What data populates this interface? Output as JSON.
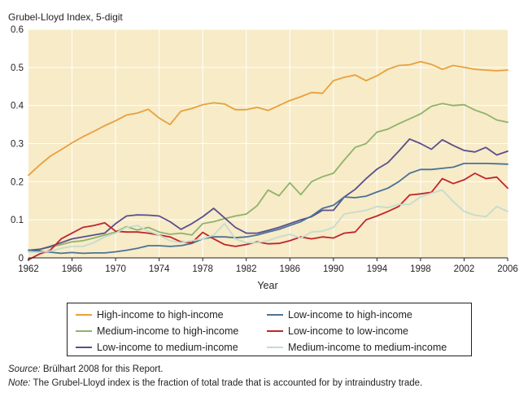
{
  "chart_data": {
    "type": "line",
    "title": "Grubel-Lloyd Index, 5-digit",
    "xlabel": "Year",
    "ylabel": "",
    "xlim": [
      1962,
      2006
    ],
    "ylim": [
      0,
      0.6
    ],
    "x_tick_labels": [
      "1962",
      "1966",
      "1970",
      "1974",
      "1978",
      "1982",
      "1986",
      "1990",
      "1994",
      "1998",
      "2002",
      "2006"
    ],
    "y_tick_labels": [
      "0",
      "0.1",
      "0.2",
      "0.3",
      "0.4",
      "0.5",
      "0.6"
    ],
    "grid": true,
    "legend_position": "bottom",
    "x": [
      1962,
      1963,
      1964,
      1965,
      1966,
      1967,
      1968,
      1969,
      1970,
      1971,
      1972,
      1973,
      1974,
      1975,
      1976,
      1977,
      1978,
      1979,
      1980,
      1981,
      1982,
      1983,
      1984,
      1985,
      1986,
      1987,
      1988,
      1989,
      1990,
      1991,
      1992,
      1993,
      1994,
      1995,
      1996,
      1997,
      1998,
      1999,
      2000,
      2001,
      2002,
      2003,
      2004,
      2005,
      2006
    ],
    "series": [
      {
        "name": "High-income to high-income",
        "color": "#e8a03c",
        "values": [
          0.217,
          0.243,
          0.267,
          0.284,
          0.302,
          0.318,
          0.332,
          0.347,
          0.36,
          0.375,
          0.38,
          0.39,
          0.367,
          0.35,
          0.385,
          0.392,
          0.402,
          0.407,
          0.404,
          0.389,
          0.389,
          0.395,
          0.387,
          0.4,
          0.413,
          0.423,
          0.434,
          0.432,
          0.465,
          0.474,
          0.48,
          0.465,
          0.478,
          0.495,
          0.505,
          0.507,
          0.515,
          0.508,
          0.495,
          0.505,
          0.5,
          0.495,
          0.493,
          0.491,
          0.493
        ]
      },
      {
        "name": "Medium-income to high-income",
        "color": "#8fb36a",
        "values": [
          0.02,
          0.023,
          0.028,
          0.035,
          0.042,
          0.045,
          0.052,
          0.06,
          0.068,
          0.082,
          0.073,
          0.08,
          0.068,
          0.062,
          0.065,
          0.06,
          0.09,
          0.095,
          0.103,
          0.11,
          0.115,
          0.137,
          0.178,
          0.163,
          0.197,
          0.166,
          0.2,
          0.213,
          0.222,
          0.257,
          0.29,
          0.3,
          0.33,
          0.338,
          0.352,
          0.365,
          0.378,
          0.398,
          0.405,
          0.4,
          0.402,
          0.388,
          0.378,
          0.362,
          0.356
        ]
      },
      {
        "name": "Low-income to medium-income",
        "color": "#5a4e8c",
        "values": [
          0.02,
          0.022,
          0.03,
          0.04,
          0.05,
          0.055,
          0.06,
          0.065,
          0.09,
          0.11,
          0.113,
          0.112,
          0.11,
          0.095,
          0.075,
          0.09,
          0.108,
          0.13,
          0.105,
          0.08,
          0.065,
          0.065,
          0.072,
          0.08,
          0.09,
          0.1,
          0.108,
          0.125,
          0.125,
          0.16,
          0.18,
          0.208,
          0.233,
          0.25,
          0.28,
          0.312,
          0.3,
          0.285,
          0.31,
          0.295,
          0.282,
          0.278,
          0.29,
          0.27,
          0.28
        ]
      },
      {
        "name": "Low-income to high-income",
        "color": "#4a7396",
        "values": [
          0.02,
          0.018,
          0.015,
          0.012,
          0.014,
          0.012,
          0.013,
          0.013,
          0.016,
          0.02,
          0.025,
          0.032,
          0.032,
          0.03,
          0.032,
          0.038,
          0.05,
          0.055,
          0.055,
          0.053,
          0.055,
          0.06,
          0.068,
          0.075,
          0.085,
          0.095,
          0.11,
          0.13,
          0.138,
          0.16,
          0.158,
          0.162,
          0.173,
          0.183,
          0.2,
          0.222,
          0.232,
          0.232,
          0.235,
          0.238,
          0.248,
          0.248,
          0.248,
          0.247,
          0.246
        ]
      },
      {
        "name": "Low-income to low-income",
        "color": "#c0252a",
        "values": [
          -0.005,
          0.01,
          0.02,
          0.05,
          0.065,
          0.08,
          0.085,
          0.092,
          0.07,
          0.068,
          0.068,
          0.065,
          0.06,
          0.055,
          0.042,
          0.04,
          0.067,
          0.05,
          0.035,
          0.03,
          0.035,
          0.042,
          0.037,
          0.038,
          0.045,
          0.055,
          0.05,
          0.055,
          0.052,
          0.065,
          0.068,
          0.1,
          0.11,
          0.122,
          0.135,
          0.165,
          0.168,
          0.172,
          0.208,
          0.195,
          0.205,
          0.222,
          0.208,
          0.212,
          0.183
        ]
      },
      {
        "name": "Medium-income to medium-income",
        "color": "#c4dccf",
        "values": [
          0.015,
          0.015,
          0.018,
          0.025,
          0.03,
          0.03,
          0.04,
          0.055,
          0.065,
          0.08,
          0.085,
          0.07,
          0.06,
          0.045,
          0.04,
          0.045,
          0.05,
          0.06,
          0.09,
          0.05,
          0.04,
          0.04,
          0.045,
          0.055,
          0.062,
          0.052,
          0.068,
          0.07,
          0.08,
          0.115,
          0.12,
          0.125,
          0.135,
          0.132,
          0.14,
          0.14,
          0.16,
          0.17,
          0.178,
          0.148,
          0.122,
          0.112,
          0.108,
          0.135,
          0.122
        ]
      }
    ]
  },
  "source": {
    "label": "Source:",
    "text": " Brülhart 2008 for this Report."
  },
  "note": {
    "label": "Note:",
    "text": " The Grubel-Lloyd index is the fraction of total trade that is accounted for by intraindustry trade."
  },
  "colors": {
    "plot_background": "#f7ebc8",
    "gridline": "#ffffff",
    "axis": "#231f20"
  }
}
